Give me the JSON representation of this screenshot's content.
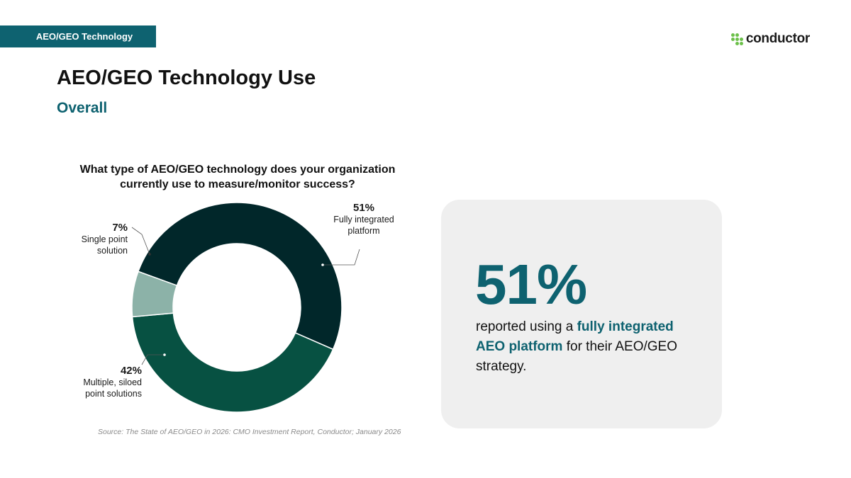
{
  "header": {
    "section_tag": "AEO/GEO Technology",
    "logo_text": "conductor",
    "logo_icon": "conductor-logo-icon"
  },
  "page": {
    "title": "AEO/GEO Technology Use",
    "subtitle": "Overall"
  },
  "chart_data": {
    "type": "pie",
    "style": "donut",
    "title": "What type of AEO/GEO technology does your organization currently use to measure/monitor success?",
    "slices": [
      {
        "label": "Fully integrated platform",
        "value": 51,
        "value_label": "51%",
        "color": "#01272a"
      },
      {
        "label": "Multiple, siloed point solutions",
        "value": 42,
        "value_label": "42%",
        "color": "#075142"
      },
      {
        "label": "Single point solution",
        "value": 7,
        "value_label": "7%",
        "color": "#8cb2a8"
      }
    ],
    "source": "Source: The State of AEO/GEO in 2026: CMO Investment Report, Conductor; January 2026"
  },
  "callout": {
    "stat": "51%",
    "text_before": "reported using a ",
    "text_highlight": "fully integrated AEO platform",
    "text_after": " for their AEO/GEO strategy."
  },
  "colors": {
    "accent": "#0e6270",
    "logo_green": "#6cc04a",
    "callout_bg": "#efefef"
  }
}
